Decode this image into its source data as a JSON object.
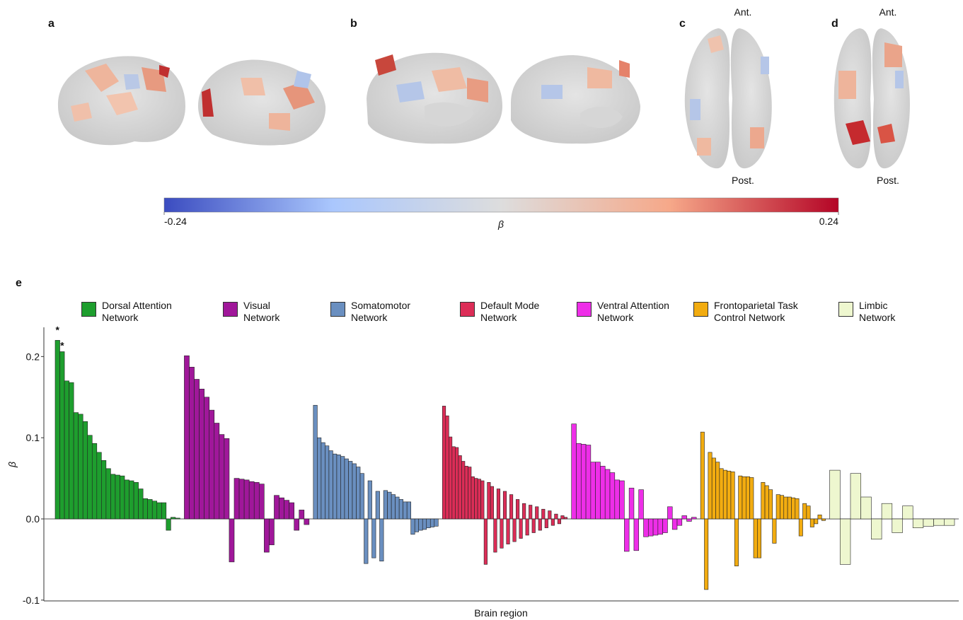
{
  "panels": [
    {
      "label": "a"
    },
    {
      "label": "b"
    },
    {
      "label": "c",
      "top": "Ant.",
      "bottom": "Post."
    },
    {
      "label": "d",
      "top": "Ant.",
      "bottom": "Post."
    }
  ],
  "colorbar": {
    "lim": [
      -0.24,
      0.24
    ],
    "ticks": [
      -0.24,
      0.24
    ],
    "label": "β",
    "colors": [
      "#3b4cc0",
      "#aac7fd",
      "#dddddd",
      "#f6a889",
      "#b40426"
    ]
  },
  "chart_data": {
    "type": "bar",
    "panel": "e",
    "ylabel": "β",
    "xlabel": "Brain region",
    "ylim": [
      -0.101,
      0.236
    ],
    "yticks": [
      -0.1,
      {
        "value": 0,
        "label": "0.0"
      },
      0.1,
      0.2
    ],
    "annotations": [
      "*",
      "*"
    ],
    "series": [
      {
        "name": "Dorsal Attention Network",
        "color": "#1e9e2e",
        "values": [
          0.22,
          0.206,
          0.17,
          0.168,
          0.131,
          0.129,
          0.12,
          0.103,
          0.093,
          0.082,
          0.072,
          0.062,
          0.055,
          0.054,
          0.053,
          0.048,
          0.047,
          0.045,
          0.037,
          0.025,
          0.024,
          0.022,
          0.02,
          0.02,
          -0.014,
          0.002,
          0.001
        ]
      },
      {
        "name": "Visual Network",
        "color": "#a0179a",
        "values": [
          0.201,
          0.187,
          0.172,
          0.16,
          0.15,
          0.134,
          0.118,
          0.104,
          0.099,
          -0.053,
          0.05,
          0.049,
          0.048,
          0.046,
          0.045,
          0.043,
          -0.041,
          -0.032,
          0.029,
          0.026,
          0.023,
          0.02,
          -0.014,
          0.011,
          -0.007
        ]
      },
      {
        "name": "Somatomotor Network",
        "color": "#6a8fc0",
        "values": [
          0.14,
          0.1,
          0.094,
          0.09,
          0.084,
          0.08,
          0.079,
          0.077,
          0.074,
          0.071,
          0.068,
          0.064,
          0.056,
          -0.055,
          0.047,
          -0.048,
          0.034,
          -0.052,
          0.035,
          0.033,
          0.03,
          0.027,
          0.024,
          0.021,
          0.021,
          -0.019,
          -0.016,
          -0.014,
          -0.013,
          -0.011,
          -0.01,
          -0.009
        ]
      },
      {
        "name": "Default Mode Network",
        "color": "#dc2d57",
        "values": [
          0.139,
          0.127,
          0.101,
          0.089,
          0.088,
          0.078,
          0.071,
          0.065,
          0.064,
          0.052,
          0.05,
          0.049,
          0.047,
          -0.056,
          0.045,
          0.04,
          -0.041,
          0.037,
          -0.036,
          0.034,
          -0.031,
          0.03,
          -0.028,
          0.024,
          -0.024,
          0.019,
          -0.02,
          0.017,
          -0.017,
          0.015,
          -0.014,
          0.012,
          -0.011,
          0.01,
          -0.008,
          0.006,
          -0.006,
          0.004,
          0.002
        ]
      },
      {
        "name": "Ventral Attention Network",
        "color": "#ee2ee8",
        "values": [
          0.117,
          0.093,
          0.092,
          0.091,
          0.07,
          0.07,
          0.065,
          0.061,
          0.057,
          0.048,
          0.047,
          -0.04,
          0.038,
          -0.039,
          0.036,
          -0.022,
          -0.021,
          -0.02,
          -0.019,
          -0.017,
          0.015,
          -0.013,
          -0.008,
          0.004,
          -0.003,
          0.002
        ]
      },
      {
        "name": "Frontoparietal Task Control Network",
        "color": "#f2ac10",
        "values": [
          0.107,
          -0.087,
          0.082,
          0.075,
          0.07,
          0.062,
          0.06,
          0.059,
          0.058,
          -0.058,
          0.053,
          0.052,
          0.052,
          0.051,
          -0.048,
          -0.048,
          0.045,
          0.041,
          0.036,
          -0.03,
          0.03,
          0.029,
          0.027,
          0.027,
          0.026,
          0.025,
          -0.021,
          0.019,
          0.016,
          -0.01,
          -0.006,
          0.005,
          -0.002
        ]
      },
      {
        "name": "Limbic Network",
        "color": "#eef7cf",
        "values": [
          0.06,
          -0.056,
          0.056,
          0.027,
          -0.025,
          0.019,
          -0.017,
          0.016,
          -0.011,
          -0.009,
          -0.008,
          -0.008
        ]
      }
    ]
  }
}
